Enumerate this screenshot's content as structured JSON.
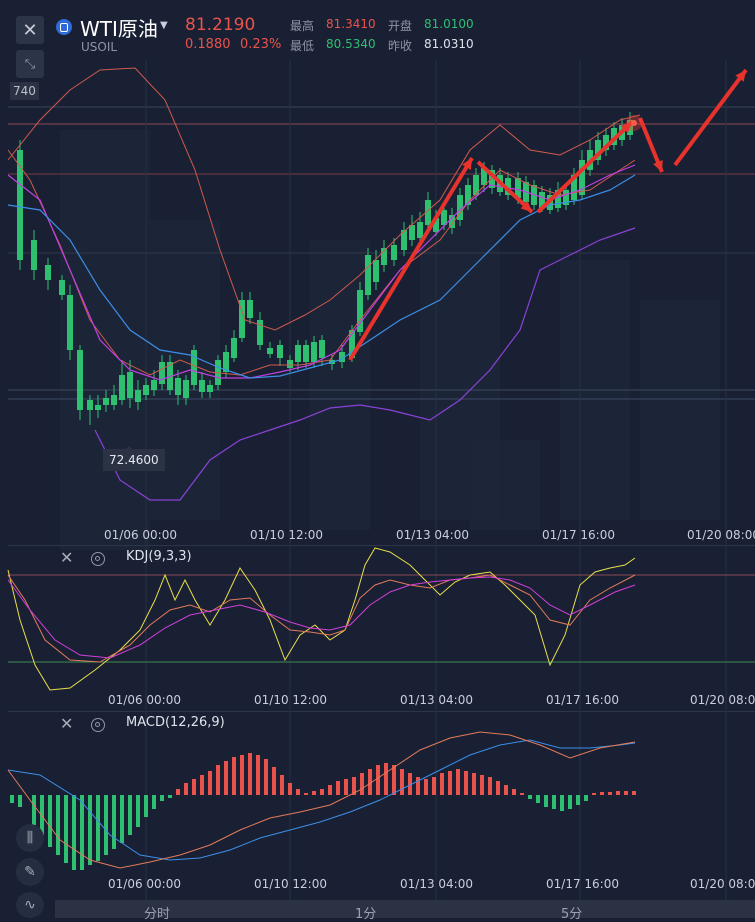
{
  "header": {
    "title": "WTI原油",
    "symbol": "USOIL",
    "price": "81.2190",
    "change": "0.1880",
    "change_pct": "0.23%",
    "high_label": "最高",
    "high": "81.3410",
    "open_label": "开盘",
    "open": "81.0100",
    "low_label": "最低",
    "low": "80.5340",
    "prev_label": "昨收",
    "prev": "81.0310"
  },
  "price_axis_tag": "740",
  "low_marker": "72.4600",
  "time_labels": [
    "01/06 00:00",
    "01/10 12:00",
    "01/13 04:00",
    "01/17 16:00",
    "01/20 08:00"
  ],
  "indicators": {
    "kdj": "KDJ(9,3,3)",
    "macd": "MACD(12,26,9)"
  },
  "tabs": [
    "分时",
    "1分",
    "5分"
  ],
  "colors": {
    "up": "#e9534c",
    "down": "#2fbf71",
    "bg": "#192033"
  },
  "icons": [
    "close-icon",
    "expand-icon",
    "settings-icon",
    "candlestick-icon",
    "pencil-icon",
    "line-chart-icon"
  ]
}
